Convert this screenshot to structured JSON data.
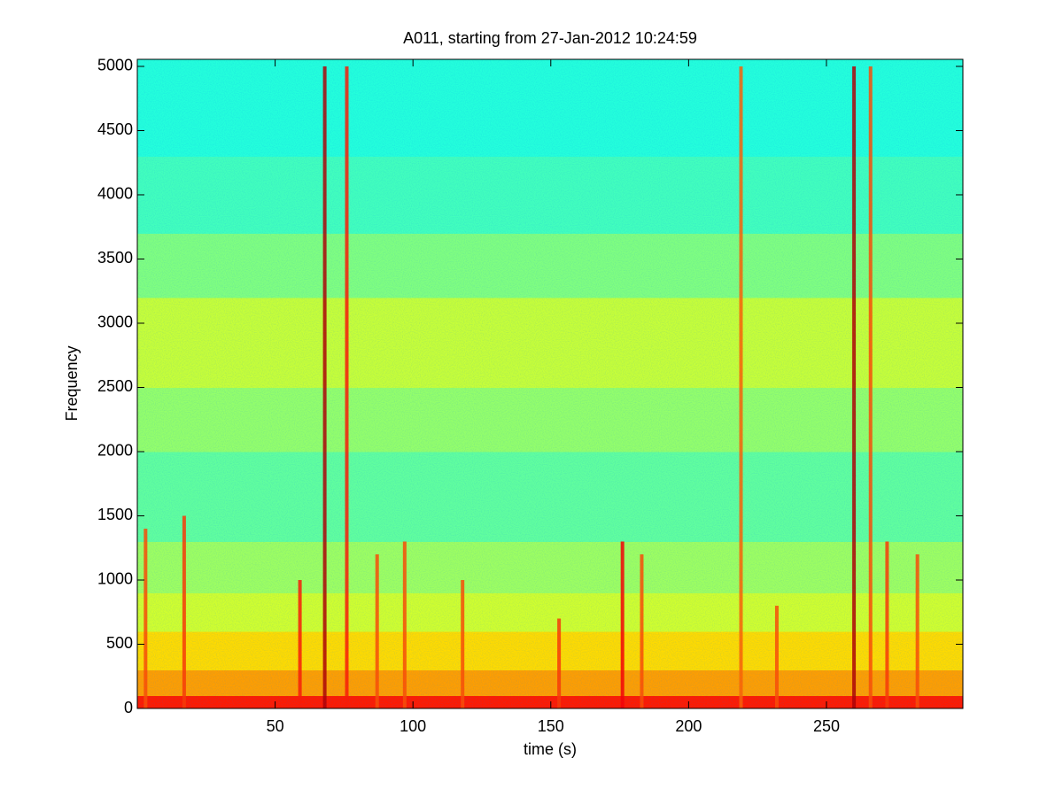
{
  "chart_data": {
    "type": "spectrogram",
    "title": "A011, starting from 27-Jan-2012 10:24:59",
    "x_label": "time (s)",
    "y_label": "Frequency",
    "xlim": [
      0,
      299.5
    ],
    "ylim": [
      0,
      5055
    ],
    "xticks": [
      50,
      100,
      150,
      200,
      250
    ],
    "yticks": [
      0,
      500,
      1000,
      1500,
      2000,
      2500,
      3000,
      3500,
      4000,
      4500,
      5000
    ],
    "colormap": "jet",
    "frequency_bins": [
      0,
      100,
      300,
      600,
      900,
      1300,
      2000,
      2500,
      3200,
      3700,
      4300,
      5055
    ],
    "levels": [
      0.85,
      0.72,
      0.66,
      0.58,
      0.53,
      0.47,
      0.52,
      0.57,
      0.5,
      0.44,
      0.41
    ],
    "streaks": {
      "x": [
        3,
        17,
        59,
        68,
        76,
        87,
        97,
        118,
        153,
        176,
        183,
        219,
        232,
        260,
        266,
        272,
        283
      ],
      "top": [
        1400,
        1500,
        1000,
        5000,
        5000,
        1200,
        1300,
        1000,
        700,
        1300,
        1200,
        5000,
        800,
        5000,
        5000,
        1300,
        1200
      ],
      "levels": [
        0.8,
        0.82,
        0.85,
        0.95,
        0.85,
        0.8,
        0.8,
        0.8,
        0.82,
        0.88,
        0.8,
        0.78,
        0.8,
        0.95,
        0.8,
        0.82,
        0.8
      ]
    }
  }
}
